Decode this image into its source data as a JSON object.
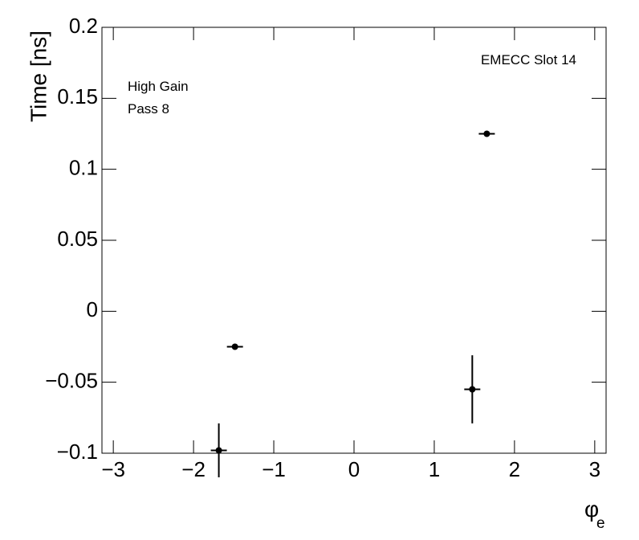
{
  "chart_data": {
    "type": "errorbar",
    "xlabel": "φ",
    "xlabel_sub": "e",
    "ylabel": "Time [ns]",
    "annotations": [
      "EMECC Slot 14",
      "High Gain",
      "Pass 8"
    ],
    "xlim": [
      -3.1416,
      3.1416
    ],
    "ylim": [
      -0.1,
      0.2
    ],
    "xticks": [
      {
        "value": -3,
        "label": "−3"
      },
      {
        "value": -2,
        "label": "−2"
      },
      {
        "value": -1,
        "label": "−1"
      },
      0,
      1,
      2,
      3
    ],
    "yticks": [
      {
        "value": -0.1,
        "label": "−0.1"
      },
      {
        "value": -0.05,
        "label": "−0.05"
      },
      0,
      0.05,
      0.1,
      0.15,
      0.2
    ],
    "series": [
      {
        "color": "#000000",
        "x": [
          -1.685,
          -1.484,
          1.474,
          1.655
        ],
        "values": [
          -0.098,
          -0.025,
          -0.055,
          0.125
        ],
        "xerr": [
          0.1,
          0.1,
          0.1,
          0.1
        ],
        "yerr": [
          0.019,
          0.001,
          0.024,
          0.001
        ]
      }
    ]
  }
}
